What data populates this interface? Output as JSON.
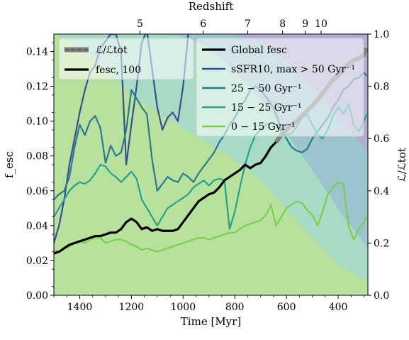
{
  "chart_data": {
    "type": "line",
    "xlabel": "Time [Myr]",
    "ylabel": "f_esc",
    "ylabel_right": "ℒ/ℒtot",
    "top_xlabel": "Redshift",
    "xlim": [
      1500,
      285
    ],
    "ylim": [
      0,
      0.15
    ],
    "ylim_right": [
      0,
      1.0
    ],
    "x_ticks": [
      1400,
      1200,
      1000,
      800,
      600,
      400
    ],
    "y_ticks": [
      0.0,
      0.02,
      0.04,
      0.06,
      0.08,
      0.1,
      0.12,
      0.14
    ],
    "y_ticks_right": [
      0.0,
      0.2,
      0.4,
      0.6,
      0.8,
      1.0
    ],
    "top_ticks": [
      {
        "label": "5",
        "time": 1167
      },
      {
        "label": "6",
        "time": 922
      },
      {
        "label": "7",
        "time": 750
      },
      {
        "label": "8",
        "time": 615
      },
      {
        "label": "9",
        "time": 527
      },
      {
        "label": "10",
        "time": 466
      }
    ],
    "grid": false,
    "legend_left": [
      {
        "label": "ℒ/ℒtot",
        "style": "gray-band"
      },
      {
        "label": "fesc, 100",
        "style": "black-thick"
      }
    ],
    "legend_right": [
      {
        "label": "Global fesc",
        "color": "#000000"
      },
      {
        "label": "sSFR10, max > 50 Gyr⁻¹",
        "color": "#3b4e8e"
      },
      {
        "label": "25 − 50 Gyr⁻¹",
        "color": "#2b7a8c"
      },
      {
        "label": "15 − 25 Gyr⁻¹",
        "color": "#24a38a"
      },
      {
        "label": "0 − 15 Gyr⁻¹",
        "color": "#7bce4f"
      }
    ],
    "luminosity_bands": [
      {
        "name": "0 − 15 Gyr⁻¹",
        "color": "#b9e29c",
        "x": [
          1500,
          1400,
          1300,
          1200,
          1100,
          1000,
          900,
          800,
          700,
          600,
          500,
          400,
          285
        ],
        "upper": [
          1.0,
          0.95,
          0.86,
          0.77,
          0.7,
          0.64,
          0.58,
          0.52,
          0.44,
          0.33,
          0.22,
          0.12,
          0.05
        ]
      },
      {
        "name": "15 − 25 Gyr⁻¹",
        "color": "#a8dcc4",
        "x": [
          1500,
          1400,
          1300,
          1200,
          1100,
          1000,
          900,
          800,
          700,
          600,
          500,
          400,
          285
        ],
        "upper": [
          1.0,
          1.0,
          1.0,
          1.0,
          1.0,
          0.99,
          0.95,
          0.86,
          0.75,
          0.62,
          0.48,
          0.33,
          0.18
        ]
      },
      {
        "name": "25 − 50 Gyr⁻¹",
        "color": "#9bc5ce",
        "x": [
          1500,
          1400,
          1300,
          1200,
          1100,
          1000,
          900,
          800,
          700,
          600,
          500,
          400,
          285
        ],
        "upper": [
          1.0,
          1.0,
          1.0,
          1.0,
          1.0,
          1.0,
          1.0,
          1.0,
          0.97,
          0.9,
          0.8,
          0.68,
          0.55
        ]
      },
      {
        "name": "sSFR10, max > 50 Gyr⁻¹",
        "color": "#aca8cc",
        "x": [
          1500,
          1400,
          1300,
          1200,
          1100,
          1000,
          900,
          800,
          700,
          600,
          500,
          400,
          285
        ],
        "upper": [
          1.0,
          1.0,
          1.0,
          1.0,
          1.0,
          1.0,
          1.0,
          1.0,
          1.0,
          1.0,
          1.0,
          1.0,
          1.0
        ]
      }
    ],
    "series": [
      {
        "name": "sSFR10, max > 50 Gyr⁻¹",
        "color": "#3b4e8e",
        "width": 2.2,
        "x": [
          1500,
          1480,
          1460,
          1440,
          1420,
          1400,
          1380,
          1360,
          1340,
          1320,
          1300,
          1280,
          1260,
          1240,
          1220,
          1200,
          1180,
          1160,
          1140,
          1120,
          1100,
          1080,
          1060,
          1040,
          1020,
          1000,
          980,
          960,
          940,
          920,
          900,
          880,
          860,
          840,
          820,
          800,
          780,
          760
        ],
        "y": [
          0.03,
          0.04,
          0.055,
          0.075,
          0.09,
          0.105,
          0.118,
          0.128,
          0.132,
          0.142,
          0.146,
          0.15,
          0.15,
          0.14,
          0.075,
          0.098,
          0.12,
          0.145,
          0.152,
          0.13,
          0.108,
          0.095,
          0.102,
          0.105,
          0.1,
          0.12,
          0.15,
          0.155,
          0.155,
          0.155,
          0.155,
          0.155,
          0.155,
          0.155,
          0.155,
          0.155,
          0.155,
          0.155
        ]
      },
      {
        "name": "25 − 50 Gyr⁻¹",
        "color": "#2b7a8c",
        "width": 2.2,
        "x": [
          1500,
          1480,
          1460,
          1440,
          1420,
          1400,
          1380,
          1360,
          1340,
          1320,
          1300,
          1280,
          1260,
          1240,
          1220,
          1200,
          1180,
          1160,
          1140,
          1120,
          1100,
          1080,
          1060,
          1040,
          1020,
          1000,
          980,
          960,
          940,
          920,
          900,
          880,
          860,
          840,
          820,
          800,
          780,
          760,
          740,
          720,
          700,
          680,
          660,
          640,
          620,
          600,
          580,
          560,
          540,
          520,
          500,
          480,
          460,
          440,
          420,
          400,
          380,
          360,
          340,
          320,
          300,
          290
        ],
        "y": [
          0.055,
          0.058,
          0.06,
          0.068,
          0.085,
          0.098,
          0.092,
          0.1,
          0.103,
          0.096,
          0.076,
          0.086,
          0.08,
          0.082,
          0.095,
          0.118,
          0.113,
          0.108,
          0.104,
          0.078,
          0.06,
          0.064,
          0.068,
          0.066,
          0.065,
          0.07,
          0.068,
          0.065,
          0.07,
          0.074,
          0.078,
          0.082,
          0.088,
          0.092,
          0.098,
          0.102,
          0.108,
          0.112,
          0.118,
          0.12,
          0.118,
          0.114,
          0.11,
          0.104,
          0.095,
          0.09,
          0.085,
          0.083,
          0.082,
          0.084,
          0.09,
          0.094,
          0.098,
          0.102,
          0.108,
          0.112,
          0.118,
          0.12,
          0.124,
          0.125,
          0.128,
          0.126
        ]
      },
      {
        "name": "15 − 25 Gyr⁻¹",
        "color": "#24a38a",
        "width": 2.2,
        "x": [
          1500,
          1480,
          1460,
          1440,
          1420,
          1400,
          1380,
          1360,
          1340,
          1320,
          1300,
          1280,
          1260,
          1240,
          1220,
          1200,
          1180,
          1160,
          1140,
          1120,
          1100,
          1080,
          1060,
          1040,
          1020,
          1000,
          980,
          960,
          940,
          920,
          900,
          880,
          860,
          840,
          820,
          800,
          780,
          760,
          740,
          720,
          700,
          680,
          660,
          640,
          620,
          600,
          580,
          560,
          540,
          520,
          500,
          480,
          460,
          440,
          420,
          400,
          380,
          360,
          340,
          320,
          300,
          290
        ],
        "y": [
          0.045,
          0.05,
          0.055,
          0.06,
          0.063,
          0.065,
          0.064,
          0.066,
          0.07,
          0.075,
          0.074,
          0.07,
          0.068,
          0.065,
          0.068,
          0.071,
          0.067,
          0.055,
          0.05,
          0.045,
          0.04,
          0.045,
          0.05,
          0.052,
          0.054,
          0.056,
          0.058,
          0.062,
          0.064,
          0.066,
          0.063,
          0.066,
          0.067,
          0.066,
          0.038,
          0.048,
          0.062,
          0.075,
          0.085,
          0.092,
          0.095,
          0.098,
          0.099,
          0.098,
          0.094,
          0.092,
          0.093,
          0.097,
          0.102,
          0.104,
          0.098,
          0.092,
          0.09,
          0.095,
          0.103,
          0.108,
          0.104,
          0.11,
          0.098,
          0.094,
          0.1,
          0.104
        ]
      },
      {
        "name": "0 − 15 Gyr⁻¹",
        "color": "#7bce4f",
        "width": 2.2,
        "x": [
          1500,
          1480,
          1460,
          1440,
          1420,
          1400,
          1380,
          1360,
          1340,
          1320,
          1300,
          1280,
          1260,
          1240,
          1220,
          1200,
          1180,
          1160,
          1140,
          1120,
          1100,
          1080,
          1060,
          1040,
          1020,
          1000,
          980,
          960,
          940,
          920,
          900,
          880,
          860,
          840,
          820,
          800,
          780,
          760,
          740,
          720,
          700,
          680,
          660,
          640,
          620,
          600,
          580,
          560,
          540,
          520,
          500,
          480,
          460,
          440,
          420,
          400,
          380,
          360,
          340,
          320,
          300,
          290
        ],
        "y": [
          0.026,
          0.025,
          0.027,
          0.028,
          0.03,
          0.031,
          0.03,
          0.032,
          0.033,
          0.033,
          0.03,
          0.031,
          0.032,
          0.032,
          0.031,
          0.029,
          0.028,
          0.026,
          0.027,
          0.026,
          0.025,
          0.026,
          0.027,
          0.028,
          0.029,
          0.03,
          0.031,
          0.032,
          0.033,
          0.033,
          0.032,
          0.033,
          0.034,
          0.035,
          0.036,
          0.036,
          0.038,
          0.04,
          0.041,
          0.042,
          0.043,
          0.046,
          0.052,
          0.04,
          0.045,
          0.05,
          0.052,
          0.054,
          0.053,
          0.049,
          0.046,
          0.04,
          0.048,
          0.058,
          0.062,
          0.065,
          0.064,
          0.04,
          0.032,
          0.038,
          0.042,
          0.045
        ]
      },
      {
        "name": "Global fesc",
        "color": "#000000",
        "width": 3.2,
        "x": [
          1500,
          1480,
          1460,
          1440,
          1420,
          1400,
          1380,
          1360,
          1340,
          1320,
          1300,
          1280,
          1260,
          1240,
          1220,
          1200,
          1180,
          1160,
          1140,
          1120,
          1100,
          1080,
          1060,
          1040,
          1020,
          1000,
          980,
          960,
          940,
          920,
          900,
          880,
          860,
          840,
          820,
          800,
          780,
          760,
          740,
          720,
          700,
          680,
          660,
          640
        ],
        "y": [
          0.024,
          0.025,
          0.027,
          0.029,
          0.03,
          0.031,
          0.032,
          0.033,
          0.034,
          0.034,
          0.035,
          0.036,
          0.036,
          0.038,
          0.042,
          0.044,
          0.042,
          0.038,
          0.039,
          0.037,
          0.038,
          0.037,
          0.037,
          0.037,
          0.038,
          0.042,
          0.046,
          0.05,
          0.054,
          0.056,
          0.058,
          0.059,
          0.062,
          0.066,
          0.068,
          0.07,
          0.072,
          0.075,
          0.073,
          0.075,
          0.076,
          0.08,
          0.085,
          0.088
        ]
      }
    ],
    "lum_total_line": {
      "color": "#7f7f7f",
      "width": 6,
      "x": [
        640,
        620,
        600,
        580,
        560,
        540,
        520,
        500,
        480,
        460,
        440,
        420,
        400,
        380,
        360,
        340,
        320,
        300,
        290
      ],
      "y": [
        0.088,
        0.092,
        0.095,
        0.098,
        0.1,
        0.103,
        0.106,
        0.109,
        0.112,
        0.116,
        0.12,
        0.124,
        0.126,
        0.13,
        0.133,
        0.135,
        0.136,
        0.138,
        0.142
      ]
    }
  }
}
